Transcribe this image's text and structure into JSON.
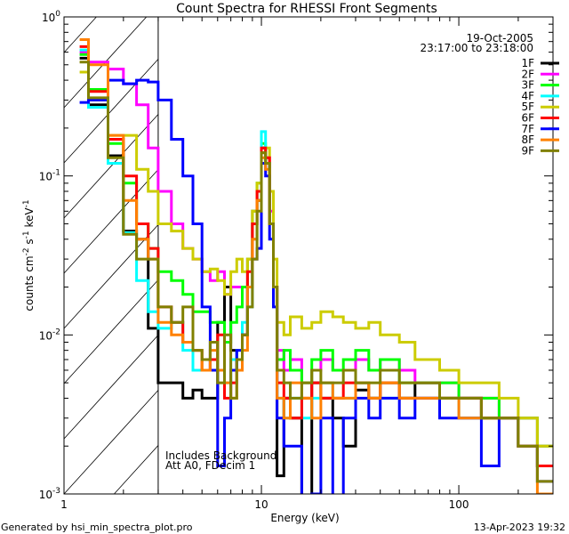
{
  "chart_data": {
    "type": "line",
    "title": "Count Spectra for RHESSI Front Segments",
    "xlabel": "Energy (keV)",
    "ylabel_parts": {
      "base": "counts cm",
      "e1": "-2",
      "mid": " s",
      "e2": "-1",
      "mid2": " keV",
      "e3": "-1"
    },
    "xscale": "log",
    "yscale": "log",
    "xlim": [
      1,
      300
    ],
    "ylim": [
      0.001,
      1
    ],
    "x_ticks": [
      {
        "v": 1,
        "label": "1"
      },
      {
        "v": 10,
        "label": "10"
      },
      {
        "v": 100,
        "label": "100"
      }
    ],
    "y_ticks": [
      {
        "v": 1,
        "base": "10",
        "exp": "0"
      },
      {
        "v": 0.1,
        "base": "10",
        "exp": "-1"
      },
      {
        "v": 0.01,
        "base": "10",
        "exp": "-2"
      },
      {
        "v": 0.001,
        "base": "10",
        "exp": "-3"
      }
    ],
    "hatched_region_kev": [
      1,
      3
    ],
    "legend_position": "top-right",
    "date": "19-Oct-2005",
    "time_range": "23:17:00 to 23:18:00",
    "annotations": [
      "Includes Background",
      "Att A0, FDecim 1"
    ],
    "bin_edges_kev": [
      1.2,
      1.33,
      1.67,
      2.0,
      2.33,
      2.67,
      3.0,
      3.5,
      4.0,
      4.5,
      5.0,
      5.5,
      6.0,
      6.5,
      7.0,
      7.5,
      8.0,
      8.5,
      9.0,
      9.5,
      10.0,
      10.5,
      11.0,
      11.5,
      12.0,
      13,
      14,
      16,
      18,
      20,
      23,
      26,
      30,
      35,
      40,
      50,
      60,
      80,
      100,
      130,
      160,
      200,
      250,
      300
    ],
    "series": [
      {
        "name": "1F",
        "color": "#000000",
        "values": [
          0.55,
          0.28,
          0.134,
          0.045,
          0.04,
          0.011,
          0.005,
          0.005,
          0.004,
          0.0045,
          0.004,
          0.004,
          0.012,
          0.02,
          0.008,
          0.006,
          0.01,
          0.02,
          0.05,
          0.07,
          0.15,
          0.12,
          0.05,
          0.02,
          0.0013,
          0.004,
          0.003,
          0.0009,
          0.005,
          0.004,
          0.003,
          0.002,
          0.0045,
          0.004,
          0.005,
          0.004,
          0.005,
          0.004,
          0.004,
          0.003,
          0.003,
          0.002,
          0.0015
        ]
      },
      {
        "name": "2F",
        "color": "#ff00ff",
        "values": [
          0.6,
          0.52,
          0.47,
          0.38,
          0.28,
          0.15,
          0.08,
          0.05,
          0.035,
          0.03,
          0.025,
          0.022,
          0.025,
          0.018,
          0.02,
          0.02,
          0.02,
          0.03,
          0.06,
          0.08,
          0.14,
          0.13,
          0.06,
          0.02,
          0.008,
          0.006,
          0.007,
          0.005,
          0.006,
          0.007,
          0.006,
          0.006,
          0.007,
          0.006,
          0.007,
          0.006,
          0.005,
          0.005,
          0.004,
          0.004,
          0.003,
          0.003,
          0.002
        ]
      },
      {
        "name": "3F",
        "color": "#00ff00",
        "values": [
          0.58,
          0.35,
          0.16,
          0.09,
          0.05,
          0.035,
          0.025,
          0.022,
          0.018,
          0.014,
          0.014,
          0.012,
          0.012,
          0.009,
          0.012,
          0.015,
          0.02,
          0.03,
          0.06,
          0.09,
          0.16,
          0.12,
          0.05,
          0.02,
          0.007,
          0.008,
          0.006,
          0.005,
          0.007,
          0.008,
          0.006,
          0.007,
          0.008,
          0.006,
          0.007,
          0.005,
          0.005,
          0.005,
          0.004,
          0.004,
          0.003,
          0.003,
          0.002
        ]
      },
      {
        "name": "4F",
        "color": "#00ffff",
        "values": [
          0.62,
          0.27,
          0.12,
          0.044,
          0.022,
          0.014,
          0.011,
          0.012,
          0.008,
          0.006,
          0.006,
          0.006,
          0.006,
          0.005,
          0.007,
          0.008,
          0.012,
          0.015,
          0.04,
          0.08,
          0.19,
          0.12,
          0.05,
          0.02,
          0.004,
          0.003,
          0.004,
          0.003,
          0.004,
          0.005,
          0.004,
          0.004,
          0.005,
          0.004,
          0.004,
          0.004,
          0.004,
          0.004,
          0.003,
          0.003,
          0.003,
          0.002,
          0.0015
        ]
      },
      {
        "name": "5F",
        "color": "#cccc00",
        "values": [
          0.45,
          0.3,
          0.18,
          0.18,
          0.11,
          0.08,
          0.05,
          0.045,
          0.035,
          0.03,
          0.025,
          0.026,
          0.022,
          0.018,
          0.025,
          0.03,
          0.025,
          0.03,
          0.06,
          0.09,
          0.14,
          0.15,
          0.08,
          0.03,
          0.012,
          0.01,
          0.013,
          0.011,
          0.012,
          0.014,
          0.013,
          0.012,
          0.011,
          0.012,
          0.01,
          0.009,
          0.007,
          0.006,
          0.005,
          0.005,
          0.004,
          0.003,
          0.002
        ]
      },
      {
        "name": "6F",
        "color": "#ff0000",
        "values": [
          0.65,
          0.34,
          0.17,
          0.1,
          0.05,
          0.035,
          0.015,
          0.012,
          0.009,
          0.008,
          0.006,
          0.007,
          0.01,
          0.004,
          0.005,
          0.006,
          0.01,
          0.025,
          0.05,
          0.08,
          0.15,
          0.13,
          0.05,
          0.02,
          0.005,
          0.004,
          0.003,
          0.004,
          0.005,
          0.004,
          0.004,
          0.005,
          0.005,
          0.004,
          0.005,
          0.004,
          0.004,
          0.004,
          0.004,
          0.003,
          0.003,
          0.002,
          0.0015
        ]
      },
      {
        "name": "7F",
        "color": "#0000ff",
        "values": [
          0.29,
          0.3,
          0.4,
          0.38,
          0.4,
          0.39,
          0.3,
          0.17,
          0.1,
          0.05,
          0.015,
          0.006,
          0.0015,
          0.003,
          0.006,
          0.008,
          0.01,
          0.02,
          0.03,
          0.035,
          0.12,
          0.1,
          0.04,
          0.015,
          0.003,
          0.002,
          0.002,
          0.0008,
          0.001,
          0.003,
          0.0008,
          0.003,
          0.004,
          0.003,
          0.004,
          0.003,
          0.004,
          0.003,
          0.003,
          0.0015,
          0.003,
          0.002,
          0.0012
        ]
      },
      {
        "name": "8F",
        "color": "#ff8000",
        "values": [
          0.72,
          0.5,
          0.18,
          0.07,
          0.04,
          0.03,
          0.012,
          0.01,
          0.009,
          0.008,
          0.006,
          0.008,
          0.006,
          0.005,
          0.004,
          0.006,
          0.008,
          0.02,
          0.04,
          0.07,
          0.13,
          0.11,
          0.05,
          0.02,
          0.004,
          0.003,
          0.005,
          0.004,
          0.003,
          0.005,
          0.004,
          0.004,
          0.005,
          0.004,
          0.005,
          0.004,
          0.004,
          0.004,
          0.003,
          0.003,
          0.003,
          0.002,
          0.001
        ]
      },
      {
        "name": "9F",
        "color": "#808000",
        "values": [
          0.52,
          0.31,
          0.13,
          0.043,
          0.03,
          0.03,
          0.015,
          0.012,
          0.015,
          0.008,
          0.007,
          0.009,
          0.005,
          0.01,
          0.004,
          0.007,
          0.01,
          0.015,
          0.03,
          0.06,
          0.14,
          0.12,
          0.05,
          0.02,
          0.006,
          0.005,
          0.004,
          0.005,
          0.006,
          0.005,
          0.005,
          0.006,
          0.005,
          0.005,
          0.006,
          0.005,
          0.005,
          0.004,
          0.004,
          0.003,
          0.003,
          0.002,
          0.0012
        ]
      }
    ]
  },
  "footer": {
    "generated_by": "Generated by hsi_min_spectra_plot.pro",
    "timestamp": "13-Apr-2023 19:32"
  }
}
